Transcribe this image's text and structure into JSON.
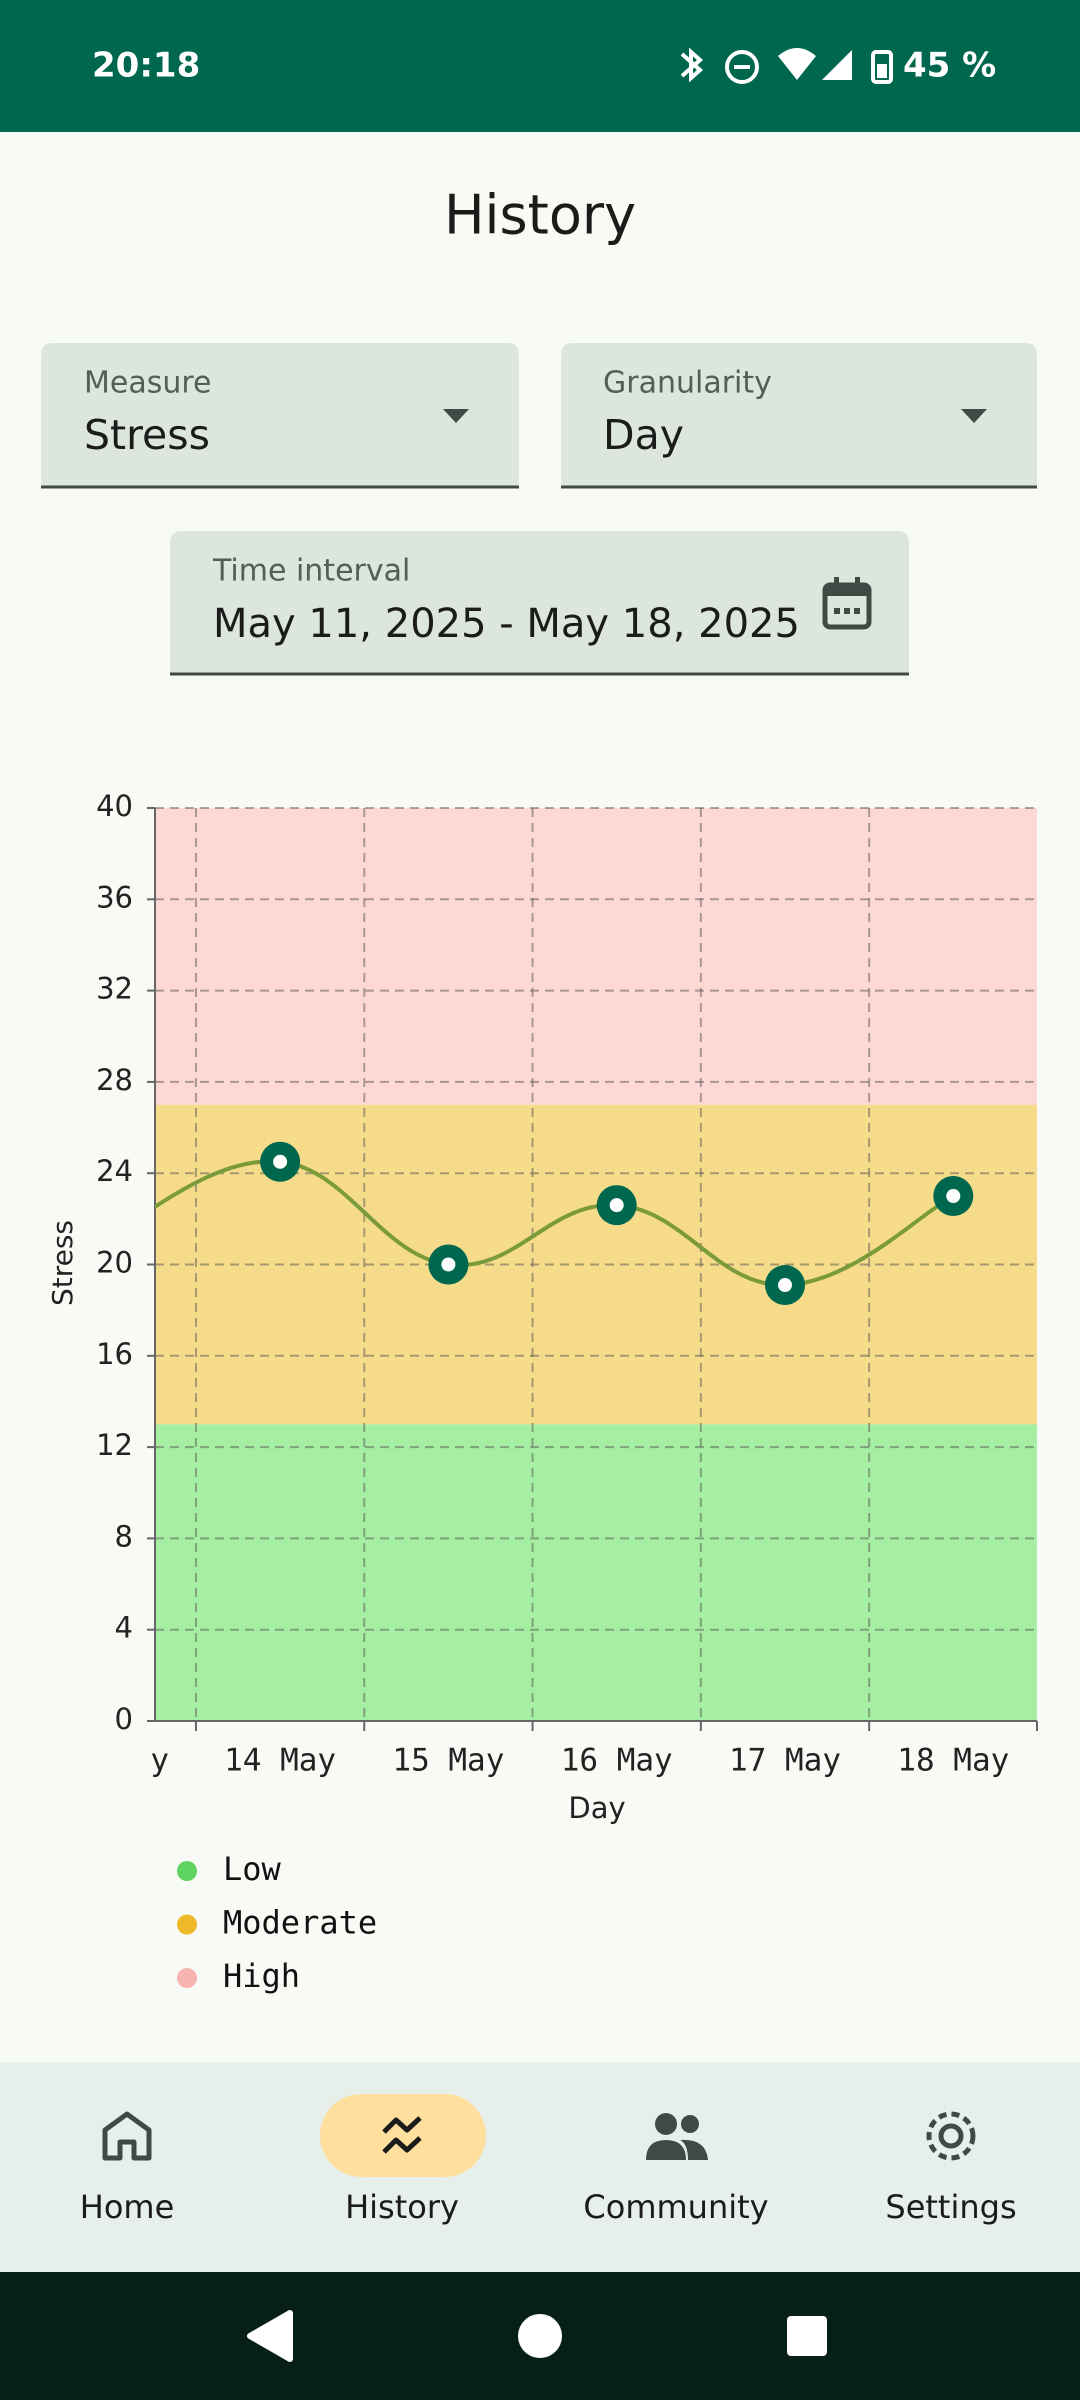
{
  "status_bar": {
    "time": "20:18",
    "battery": "45 %"
  },
  "header": {
    "title": "History"
  },
  "filters": {
    "measure": {
      "label": "Measure",
      "value": "Stress"
    },
    "granularity": {
      "label": "Granularity",
      "value": "Day"
    },
    "time_interval": {
      "label": "Time interval",
      "value": "May 11, 2025 - May 18, 2025"
    }
  },
  "chart_data": {
    "type": "line",
    "x_label": "Day",
    "y_label": "Stress",
    "categories": [
      "y",
      "14 May",
      "15 May",
      "16 May",
      "17 May",
      "18 May"
    ],
    "series": [
      {
        "color": "#7a9a3c",
        "marker_color": "#00674f",
        "values": [
          21.4,
          24.5,
          20.0,
          22.6,
          19.1,
          23.0
        ]
      }
    ],
    "ylim": [
      0,
      40
    ],
    "yticks": [
      0,
      4,
      8,
      12,
      16,
      20,
      24,
      28,
      32,
      36,
      40
    ],
    "grid": true,
    "zones": [
      {
        "name": "Low",
        "range": [
          0,
          13
        ],
        "color": "#5fd35f",
        "fill": "#a6eea2"
      },
      {
        "name": "Moderate",
        "range": [
          13,
          27
        ],
        "color": "#f0b92a",
        "fill": "#f6dc8a"
      },
      {
        "name": "High",
        "range": [
          27,
          40
        ],
        "color": "#f8b4b0",
        "fill": "#fdd8d4"
      }
    ]
  },
  "nav": {
    "items": [
      {
        "label": "Home"
      },
      {
        "label": "History"
      },
      {
        "label": "Community"
      },
      {
        "label": "Settings"
      }
    ]
  }
}
